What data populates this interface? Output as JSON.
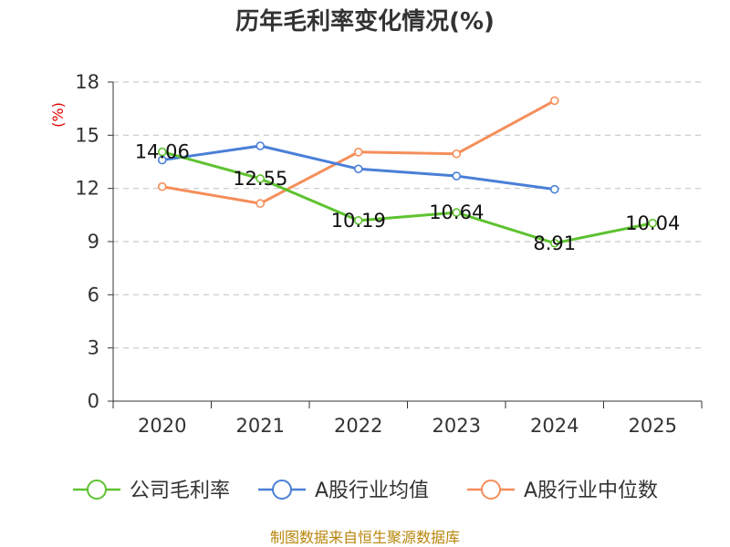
{
  "chart_data": {
    "type": "line",
    "title": "历年毛利率变化情况(%)",
    "ylabel": "(%)",
    "xlabel": "",
    "categories": [
      "2020",
      "2021",
      "2022",
      "2023",
      "2024",
      "2025"
    ],
    "ylim": [
      0,
      18
    ],
    "yticks": [
      0,
      3,
      6,
      9,
      12,
      15,
      18
    ],
    "grid": true,
    "legend_position": "bottom",
    "series": [
      {
        "name": "公司毛利率",
        "color": "#5ec230",
        "values": [
          14.06,
          12.55,
          10.19,
          10.64,
          8.91,
          10.04
        ],
        "labels": [
          "14.06",
          "12.55",
          "10.19",
          "10.64",
          "8.91",
          "10.04"
        ]
      },
      {
        "name": "A股行业均值",
        "color": "#4a7fd8",
        "values": [
          13.6,
          14.4,
          13.1,
          12.7,
          11.95,
          null
        ]
      },
      {
        "name": "A股行业中位数",
        "color": "#f58e5a",
        "values": [
          12.1,
          11.15,
          14.05,
          13.95,
          16.95,
          null
        ]
      }
    ]
  },
  "source": "制图数据来自恒生聚源数据库"
}
